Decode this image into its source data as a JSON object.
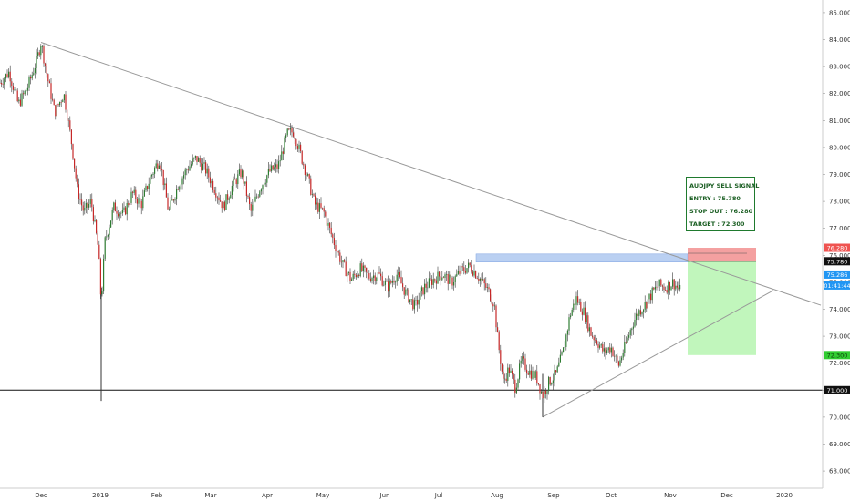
{
  "signal": {
    "title": "AUDJPY SELL SIGNAL",
    "entry": "ENTRY : 75.780",
    "stop": "STOP OUT : 76.280",
    "target": "TARGET : 72.300"
  },
  "chart_data": {
    "type": "candlestick",
    "ylim": [
      67.8,
      85.2
    ],
    "y_ticks": [
      "68.000",
      "69.000",
      "70.000",
      "71.000",
      "72.000",
      "73.000",
      "74.000",
      "75.000",
      "76.000",
      "77.000",
      "78.000",
      "79.000",
      "80.000",
      "81.000",
      "82.000",
      "83.000",
      "84.000",
      "85.000"
    ],
    "x_ticks": [
      "Dec",
      "2019",
      "Feb",
      "Mar",
      "Apr",
      "May",
      "Jun",
      "Jul",
      "Aug",
      "Sep",
      "Oct",
      "Nov",
      "Dec",
      "2020"
    ],
    "price_path": [
      [
        0,
        82.4
      ],
      [
        10,
        82.8
      ],
      [
        20,
        81.6
      ],
      [
        30,
        82.2
      ],
      [
        40,
        83.2
      ],
      [
        45,
        83.9
      ],
      [
        52,
        82.6
      ],
      [
        60,
        81.3
      ],
      [
        70,
        82.0
      ],
      [
        78,
        80.3
      ],
      [
        85,
        78.4
      ],
      [
        92,
        77.6
      ],
      [
        100,
        78.0
      ],
      [
        108,
        76.2
      ],
      [
        111,
        74.2
      ],
      [
        115,
        76.5
      ],
      [
        125,
        77.8
      ],
      [
        135,
        77.5
      ],
      [
        145,
        78.3
      ],
      [
        155,
        77.9
      ],
      [
        165,
        78.9
      ],
      [
        175,
        79.6
      ],
      [
        185,
        77.6
      ],
      [
        195,
        78.6
      ],
      [
        205,
        79.2
      ],
      [
        215,
        79.6
      ],
      [
        225,
        79.2
      ],
      [
        235,
        78.5
      ],
      [
        245,
        77.8
      ],
      [
        255,
        78.6
      ],
      [
        265,
        79.1
      ],
      [
        275,
        77.6
      ],
      [
        285,
        78.5
      ],
      [
        295,
        79.1
      ],
      [
        305,
        79.3
      ],
      [
        315,
        80.5
      ],
      [
        322,
        80.6
      ],
      [
        330,
        79.7
      ],
      [
        338,
        78.8
      ],
      [
        345,
        77.9
      ],
      [
        355,
        77.6
      ],
      [
        365,
        76.6
      ],
      [
        375,
        75.7
      ],
      [
        385,
        75.1
      ],
      [
        395,
        75.5
      ],
      [
        405,
        75.2
      ],
      [
        415,
        75.3
      ],
      [
        425,
        74.8
      ],
      [
        435,
        75.3
      ],
      [
        445,
        74.6
      ],
      [
        455,
        74.1
      ],
      [
        465,
        74.8
      ],
      [
        475,
        75.1
      ],
      [
        485,
        75.3
      ],
      [
        495,
        75.0
      ],
      [
        505,
        75.4
      ],
      [
        515,
        75.6
      ],
      [
        525,
        75.2
      ],
      [
        535,
        74.7
      ],
      [
        542,
        74.2
      ],
      [
        546,
        72.8
      ],
      [
        552,
        71.3
      ],
      [
        558,
        71.8
      ],
      [
        565,
        71.1
      ],
      [
        572,
        72.1
      ],
      [
        580,
        71.7
      ],
      [
        588,
        71.5
      ],
      [
        595,
        70.8
      ],
      [
        602,
        71.3
      ],
      [
        610,
        71.6
      ],
      [
        618,
        72.5
      ],
      [
        625,
        73.8
      ],
      [
        632,
        74.4
      ],
      [
        640,
        73.9
      ],
      [
        648,
        73.1
      ],
      [
        655,
        72.8
      ],
      [
        662,
        72.4
      ],
      [
        670,
        72.6
      ],
      [
        678,
        71.9
      ],
      [
        686,
        72.7
      ],
      [
        694,
        73.5
      ],
      [
        700,
        73.9
      ],
      [
        708,
        74.2
      ],
      [
        715,
        74.6
      ],
      [
        722,
        74.9
      ],
      [
        730,
        74.8
      ],
      [
        738,
        75.0
      ],
      [
        745,
        74.7
      ]
    ],
    "annotations": {
      "trend_resistance_line": [
        [
          45,
          83.9
        ],
        [
          900,
          74.15
        ]
      ],
      "trend_support_line": [
        [
          595,
          70.0
        ],
        [
          848,
          74.7
        ]
      ],
      "horizontal_support": 71.0,
      "resistance_zone": [
        75.75,
        76.05
      ],
      "stop_zone": [
        75.78,
        76.28
      ],
      "target_zone": [
        72.3,
        75.78
      ],
      "spike_low_dec": 70.6,
      "spike_low_aug": 70.0
    },
    "price_labels": [
      {
        "text": "76.280",
        "value": 76.28,
        "color": "#ef5350"
      },
      {
        "text": "75.780",
        "value": 75.78,
        "color": "#111111"
      },
      {
        "text": "75.286",
        "value": 75.286,
        "color": "#2196f3"
      },
      {
        "text": "01:41:44",
        "value": 74.92,
        "color": "#2196f3"
      },
      {
        "text": "72.300",
        "value": 72.3,
        "color": "#32cd32"
      },
      {
        "text": "71.000",
        "value": 71.0,
        "color": "#111111"
      }
    ]
  }
}
